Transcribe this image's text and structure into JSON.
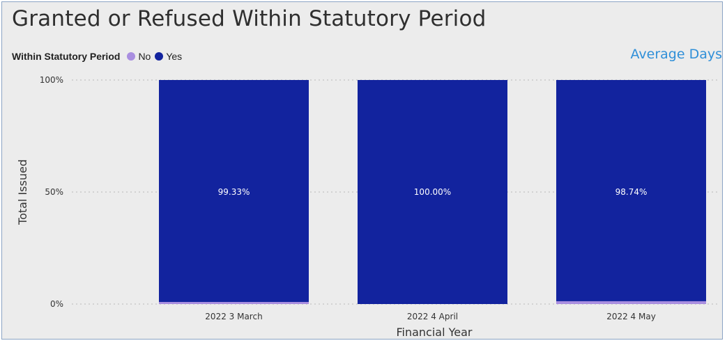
{
  "title": "Granted or Refused Within Statutory Period",
  "legend": {
    "title": "Within Statutory Period",
    "items": [
      {
        "label": "No",
        "color": "#a98ee0"
      },
      {
        "label": "Yes",
        "color": "#12239e"
      }
    ]
  },
  "link": {
    "label": "Average Days",
    "color": "#2f8fd8"
  },
  "chart_data": {
    "type": "bar",
    "stacked": "percent",
    "title": "Granted or Refused Within Statutory Period",
    "xlabel": "Financial Year",
    "ylabel": "Total Issued",
    "categories": [
      "2022 3 March",
      "2022 4 April",
      "2022 4 May"
    ],
    "series": [
      {
        "name": "Yes",
        "color": "#12239e",
        "values": [
          99.33,
          100.0,
          98.74
        ]
      },
      {
        "name": "No",
        "color": "#a98ee0",
        "values": [
          0.67,
          0.0,
          1.26
        ]
      }
    ],
    "data_labels": [
      "99.33%",
      "100.00%",
      "98.74%"
    ],
    "yticks": [
      "0%",
      "50%",
      "100%"
    ],
    "ylim": [
      0,
      100
    ],
    "grid": true,
    "legend_position": "top-left"
  }
}
